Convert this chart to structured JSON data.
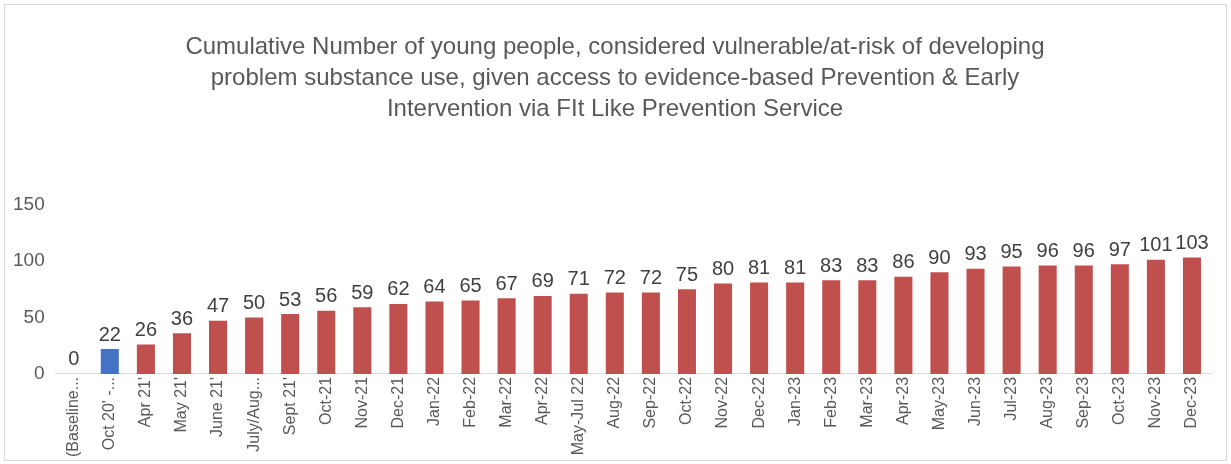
{
  "chart_data": {
    "type": "bar",
    "title": "Cumulative Number of young people, considered vulnerable/at-risk of developing problem substance use, given access to evidence-based Prevention & Early Intervention via FIt Like Prevention Service",
    "categories": [
      "(Baseline...",
      "Oct 20' -...",
      "Apr 21'",
      "May 21'",
      "June 21'",
      "July/Aug...",
      "Sept 21'",
      "Oct-21",
      "Nov-21",
      "Dec-21",
      "Jan-22",
      "Feb-22",
      "Mar-22",
      "Apr-22",
      "May-Jul 22",
      "Aug-22",
      "Sep-22",
      "Oct-22",
      "Nov-22",
      "Dec-22",
      "Jan-23",
      "Feb-23",
      "Mar-23",
      "Apr-23",
      "May-23",
      "Jun-23",
      "Jul-23",
      "Aug-23",
      "Sep-23",
      "Oct-23",
      "Nov-23",
      "Dec-23"
    ],
    "values": [
      0,
      22,
      26,
      36,
      47,
      50,
      53,
      56,
      59,
      62,
      64,
      65,
      67,
      69,
      71,
      72,
      72,
      75,
      80,
      81,
      81,
      83,
      83,
      86,
      90,
      93,
      95,
      96,
      96,
      97,
      101,
      103
    ],
    "colors": [
      "#c0504d",
      "#4472c4",
      "#c0504d",
      "#c0504d",
      "#c0504d",
      "#c0504d",
      "#c0504d",
      "#c0504d",
      "#c0504d",
      "#c0504d",
      "#c0504d",
      "#c0504d",
      "#c0504d",
      "#c0504d",
      "#c0504d",
      "#c0504d",
      "#c0504d",
      "#c0504d",
      "#c0504d",
      "#c0504d",
      "#c0504d",
      "#c0504d",
      "#c0504d",
      "#c0504d",
      "#c0504d",
      "#c0504d",
      "#c0504d",
      "#c0504d",
      "#c0504d",
      "#c0504d",
      "#c0504d",
      "#c0504d"
    ],
    "ylim": [
      0,
      150
    ],
    "yticks": [
      0,
      50,
      100,
      150
    ],
    "grid": false,
    "legend": false,
    "data_labels": true
  }
}
